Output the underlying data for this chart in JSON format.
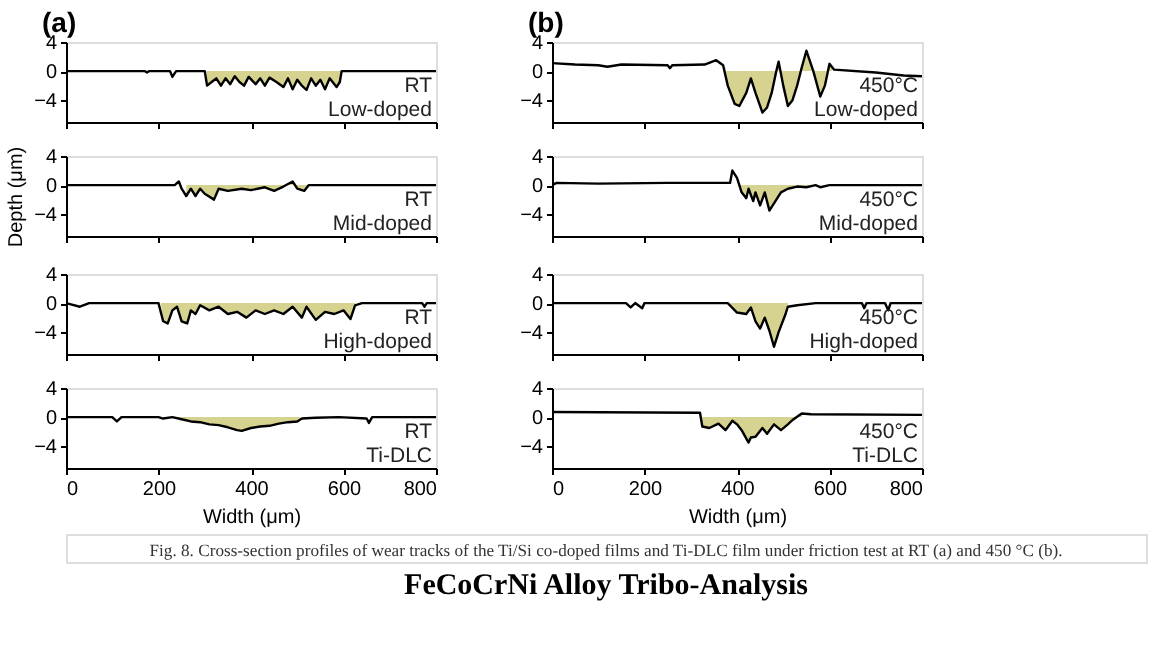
{
  "chart_data": [
    {
      "type": "line",
      "title": "(a)",
      "xlim": [
        0,
        800
      ],
      "ylim": [
        -7,
        4
      ],
      "xticks": [
        0,
        200,
        400,
        600,
        800
      ],
      "yticks": [
        -4,
        0,
        4
      ],
      "tick_labels": "y",
      "grid": false,
      "legend": false,
      "annotations": [
        "RT",
        "Low-doped"
      ],
      "series": [
        {
          "type": "area",
          "color": "#d6d28f",
          "x": [
            304,
            315,
            325,
            335,
            345,
            355,
            365,
            375,
            385,
            395,
            410,
            420,
            430,
            440,
            455,
            470,
            480,
            490,
            500,
            510,
            520,
            530,
            540,
            550,
            560,
            570,
            585,
            592,
            596
          ],
          "values": [
            -2,
            -1.5,
            -1,
            -2,
            -1,
            -1.8,
            -0.7,
            -1.5,
            -2,
            -0.8,
            -1.8,
            -1,
            -2,
            -0.9,
            -1.5,
            -2.2,
            -1,
            -2.5,
            -1.2,
            -2,
            -2.6,
            -1,
            -2,
            -1.2,
            -2.5,
            -1,
            -2.2,
            -1.5,
            0
          ]
        },
        {
          "type": "line",
          "color": "#000000",
          "x": [
            0,
            170,
            175,
            180,
            225,
            230,
            238,
            300,
            305,
            315,
            325,
            335,
            345,
            355,
            365,
            375,
            385,
            395,
            410,
            420,
            430,
            440,
            455,
            470,
            480,
            490,
            500,
            510,
            520,
            530,
            540,
            550,
            560,
            570,
            585,
            592,
            596,
            800
          ],
          "values": [
            0,
            0,
            -0.2,
            0,
            0,
            -0.8,
            0,
            0,
            -2,
            -1.5,
            -1,
            -2,
            -1,
            -1.8,
            -0.7,
            -1.5,
            -2,
            -0.8,
            -1.8,
            -1,
            -2,
            -0.9,
            -1.5,
            -2.2,
            -1,
            -2.5,
            -1.2,
            -2,
            -2.6,
            -1,
            -2,
            -1.2,
            -2.5,
            -1,
            -2.2,
            -1.5,
            0,
            0
          ]
        }
      ]
    },
    {
      "type": "line",
      "title": "(b)",
      "xlim": [
        0,
        800
      ],
      "ylim": [
        -7,
        4
      ],
      "xticks": [
        0,
        200,
        400,
        600,
        800
      ],
      "yticks": [
        -4,
        0,
        4
      ],
      "tick_labels": "y",
      "grid": false,
      "legend": false,
      "annotations": [
        "450°C",
        "Low-doped"
      ],
      "series": [
        {
          "type": "area",
          "color": "#d6d28f",
          "x": [
            375,
            380,
            395,
            405,
            420,
            430,
            440,
            455,
            465,
            475,
            485,
            490,
            500,
            510,
            520,
            530,
            540,
            550,
            565,
            580,
            590,
            600,
            605
          ],
          "values": [
            0.6,
            -2,
            -4.5,
            -4.8,
            -3,
            -1,
            -3,
            -5.7,
            -5,
            -3,
            0,
            1.3,
            -2,
            -4.8,
            -4,
            -2,
            0.5,
            2.8,
            0,
            -3.5,
            -2,
            1,
            0.6
          ]
        },
        {
          "type": "line",
          "color": "#000000",
          "x": [
            0,
            50,
            100,
            120,
            150,
            250,
            255,
            260,
            330,
            355,
            370,
            380,
            395,
            405,
            420,
            430,
            440,
            455,
            465,
            475,
            485,
            490,
            500,
            510,
            520,
            530,
            540,
            550,
            565,
            580,
            590,
            600,
            610,
            700,
            760,
            800
          ],
          "values": [
            1.1,
            0.9,
            0.8,
            0.6,
            0.9,
            0.8,
            0.4,
            0.8,
            0.9,
            1.5,
            0.8,
            -2,
            -4.5,
            -4.8,
            -3,
            -1,
            -3,
            -5.7,
            -5,
            -3,
            0,
            1.3,
            -2,
            -4.8,
            -4,
            -2,
            0.5,
            2.8,
            0,
            -3.5,
            -2,
            1,
            0.2,
            -0.2,
            -0.6,
            -0.7
          ]
        }
      ]
    },
    {
      "type": "line",
      "ylabel": "Depth (μm)",
      "xlim": [
        0,
        800
      ],
      "ylim": [
        -7,
        4
      ],
      "xticks": [
        0,
        200,
        400,
        600,
        800
      ],
      "yticks": [
        -4,
        0,
        4
      ],
      "tick_labels": "y",
      "grid": false,
      "legend": false,
      "annotations": [
        "RT",
        "Mid-doped"
      ],
      "series": [
        {
          "type": "area",
          "color": "#d6d28f",
          "x": [
            260,
            270,
            280,
            290,
            300,
            320,
            330,
            350,
            380,
            400,
            430,
            450,
            470,
            490,
            500,
            515,
            525
          ],
          "values": [
            -1.5,
            -0.5,
            -1.5,
            -0.5,
            -1.2,
            -2,
            -0.5,
            -0.8,
            -0.5,
            -0.7,
            -0.3,
            -0.8,
            -0.2,
            0.5,
            -0.5,
            -0.8,
            0
          ]
        },
        {
          "type": "line",
          "color": "#000000",
          "x": [
            0,
            235,
            244,
            250,
            260,
            270,
            280,
            290,
            300,
            320,
            330,
            350,
            380,
            400,
            430,
            450,
            470,
            490,
            500,
            515,
            525,
            800
          ],
          "values": [
            0,
            0,
            0.5,
            -0.5,
            -1.5,
            -0.5,
            -1.5,
            -0.5,
            -1.2,
            -2,
            -0.5,
            -0.8,
            -0.5,
            -0.7,
            -0.3,
            -0.8,
            -0.2,
            0.5,
            -0.5,
            -0.8,
            0,
            0
          ]
        }
      ]
    },
    {
      "type": "line",
      "xlim": [
        0,
        800
      ],
      "ylim": [
        -7,
        4
      ],
      "xticks": [
        0,
        200,
        400,
        600,
        800
      ],
      "yticks": [
        -4,
        0,
        4
      ],
      "tick_labels": "y",
      "grid": false,
      "legend": false,
      "annotations": [
        "450°C",
        "Mid-doped"
      ],
      "series": [
        {
          "type": "area",
          "color": "#d6d28f",
          "x": [
            405,
            410,
            420,
            425,
            435,
            440,
            450,
            460,
            470,
            480,
            495,
            510,
            530,
            550,
            570,
            580
          ],
          "values": [
            0,
            -1,
            -1.8,
            -0.5,
            -2.2,
            -1,
            -2.8,
            -1,
            -3.5,
            -2.5,
            -1,
            -0.5,
            -0.2,
            -0.3,
            0,
            -0.3
          ]
        },
        {
          "type": "line",
          "color": "#000000",
          "x": [
            0,
            10,
            100,
            250,
            385,
            390,
            400,
            410,
            420,
            425,
            435,
            440,
            450,
            460,
            470,
            480,
            495,
            510,
            530,
            550,
            570,
            580,
            600,
            800
          ],
          "values": [
            0,
            0.3,
            0.2,
            0.3,
            0.3,
            2,
            1,
            -1,
            -1.8,
            -0.5,
            -2.2,
            -1,
            -2.8,
            -1,
            -3.5,
            -2.5,
            -1,
            -0.5,
            -0.2,
            -0.3,
            0,
            -0.3,
            0,
            0
          ]
        }
      ]
    },
    {
      "type": "line",
      "xlim": [
        0,
        800
      ],
      "ylim": [
        -7,
        4
      ],
      "xticks": [
        0,
        200,
        400,
        600,
        800
      ],
      "yticks": [
        -4,
        0,
        4
      ],
      "tick_labels": "y",
      "grid": false,
      "legend": false,
      "annotations": [
        "RT",
        "High-doped"
      ],
      "series": [
        {
          "type": "area",
          "color": "#d6d28f",
          "x": [
            205,
            210,
            220,
            230,
            240,
            250,
            262,
            270,
            280,
            290,
            310,
            330,
            350,
            370,
            390,
            410,
            430,
            450,
            470,
            490,
            510,
            520,
            540,
            560,
            580,
            600,
            615,
            625
          ],
          "values": [
            0,
            -2.5,
            -2.8,
            -1,
            -0.5,
            -2.5,
            -2.8,
            -1,
            -1.5,
            -0.3,
            -1,
            -0.5,
            -1.5,
            -1.2,
            -2,
            -1,
            -1.5,
            -1,
            -1.5,
            -0.5,
            -2,
            -0.5,
            -2.3,
            -1.2,
            -1.5,
            -1,
            -2.2,
            -0.3
          ]
        },
        {
          "type": "line",
          "color": "#000000",
          "x": [
            0,
            30,
            50,
            200,
            210,
            220,
            230,
            240,
            250,
            262,
            270,
            280,
            290,
            310,
            330,
            350,
            370,
            390,
            410,
            430,
            450,
            470,
            490,
            510,
            520,
            540,
            560,
            580,
            600,
            615,
            625,
            640,
            770,
            775,
            780,
            800
          ],
          "values": [
            0,
            -0.5,
            0,
            0,
            -2.5,
            -2.8,
            -1,
            -0.5,
            -2.5,
            -2.8,
            -1,
            -1.5,
            -0.3,
            -1,
            -0.5,
            -1.5,
            -1.2,
            -2,
            -1,
            -1.5,
            -1,
            -1.5,
            -0.5,
            -2,
            -0.5,
            -2.3,
            -1.2,
            -1.5,
            -1,
            -2.2,
            -0.3,
            0,
            0,
            -0.5,
            0,
            0
          ]
        }
      ]
    },
    {
      "type": "line",
      "xlim": [
        0,
        800
      ],
      "ylim": [
        -7,
        4
      ],
      "xticks": [
        0,
        200,
        400,
        600,
        800
      ],
      "yticks": [
        -4,
        0,
        4
      ],
      "tick_labels": "y",
      "grid": false,
      "legend": false,
      "annotations": [
        "450°C",
        "High-doped"
      ],
      "series": [
        {
          "type": "area",
          "color": "#d6d28f",
          "x": [
            385,
            400,
            420,
            430,
            440,
            450,
            460,
            470,
            480,
            490,
            505,
            510
          ],
          "values": [
            0,
            -1.3,
            -1.5,
            -0.6,
            -2.5,
            -3.5,
            -2,
            -3.8,
            -6,
            -4,
            -1.5,
            -0.5
          ]
        },
        {
          "type": "line",
          "color": "#000000",
          "x": [
            0,
            160,
            170,
            180,
            195,
            200,
            380,
            400,
            420,
            430,
            440,
            450,
            460,
            470,
            480,
            490,
            505,
            510,
            530,
            570,
            670,
            675,
            680,
            720,
            727,
            732,
            800
          ],
          "values": [
            0,
            0,
            -0.6,
            0,
            -0.7,
            0,
            0,
            -1.3,
            -1.5,
            -0.6,
            -2.5,
            -3.5,
            -2,
            -3.8,
            -6,
            -4,
            -1.5,
            -0.5,
            -0.3,
            0,
            0,
            -0.7,
            0,
            0,
            -1,
            0,
            0
          ]
        }
      ]
    },
    {
      "type": "line",
      "xlabel": "Width (μm)",
      "xlim": [
        0,
        800
      ],
      "ylim": [
        -7,
        4
      ],
      "xticks": [
        0,
        200,
        400,
        600,
        800
      ],
      "yticks": [
        -4,
        0,
        4
      ],
      "grid": false,
      "legend": false,
      "annotations": [
        "RT",
        "Ti-DLC"
      ],
      "series": [
        {
          "type": "area",
          "color": "#d6d28f",
          "x": [
            230,
            250,
            270,
            290,
            310,
            330,
            350,
            370,
            380,
            400,
            420,
            440,
            460,
            480,
            500,
            505
          ],
          "values": [
            0,
            -0.3,
            -0.6,
            -0.7,
            -1,
            -1.1,
            -1.4,
            -1.8,
            -1.9,
            -1.5,
            -1.3,
            -1.2,
            -0.9,
            -0.7,
            -0.6,
            -0.3
          ]
        },
        {
          "type": "line",
          "color": "#000000",
          "x": [
            0,
            100,
            110,
            120,
            200,
            210,
            230,
            250,
            270,
            290,
            310,
            330,
            350,
            370,
            380,
            400,
            420,
            440,
            460,
            480,
            500,
            510,
            540,
            590,
            650,
            655,
            662,
            800
          ],
          "values": [
            0,
            0,
            -0.6,
            0,
            0,
            -0.2,
            0,
            -0.3,
            -0.6,
            -0.7,
            -1,
            -1.1,
            -1.4,
            -1.8,
            -1.9,
            -1.5,
            -1.3,
            -1.2,
            -0.9,
            -0.7,
            -0.6,
            -0.2,
            -0.1,
            0,
            -0.2,
            -0.8,
            0,
            0
          ]
        }
      ]
    },
    {
      "type": "line",
      "xlabel": "Width (μm)",
      "xlim": [
        0,
        800
      ],
      "ylim": [
        -7,
        4
      ],
      "xticks": [
        0,
        200,
        400,
        600,
        800
      ],
      "yticks": [
        -4,
        0,
        4
      ],
      "grid": false,
      "legend": false,
      "annotations": [
        "450°C",
        "Ti-DLC"
      ],
      "series": [
        {
          "type": "area",
          "color": "#d6d28f",
          "x": [
            325,
            340,
            360,
            375,
            390,
            400,
            410,
            425,
            430,
            440,
            455,
            465,
            480,
            495,
            510,
            520,
            540
          ],
          "values": [
            -1.3,
            -1.5,
            -0.9,
            -1.8,
            -0.5,
            -1,
            -1.8,
            -3.5,
            -2.8,
            -2.7,
            -1.5,
            -2.3,
            -1,
            -1.8,
            -1,
            -0.4,
            0.5
          ]
        },
        {
          "type": "line",
          "color": "#000000",
          "x": [
            0,
            320,
            325,
            340,
            360,
            375,
            390,
            400,
            410,
            425,
            430,
            440,
            455,
            465,
            480,
            495,
            510,
            520,
            540,
            560,
            800
          ],
          "values": [
            0.7,
            0.6,
            -1.3,
            -1.5,
            -0.9,
            -1.8,
            -0.5,
            -1,
            -1.8,
            -3.5,
            -2.8,
            -2.7,
            -1.5,
            -2.3,
            -1,
            -1.8,
            -1,
            -0.4,
            0.5,
            0.4,
            0.3
          ]
        }
      ]
    },
    {
      "type": "other",
      "title": "FeCoCrNi Alloy Tribo-Analysis",
      "annotations": [
        "Fig. 8. Cross-section profiles of wear tracks of the Ti/Si co-doped films and Ti-DLC film under friction test at RT (a) and 450 °C (b)."
      ]
    }
  ]
}
